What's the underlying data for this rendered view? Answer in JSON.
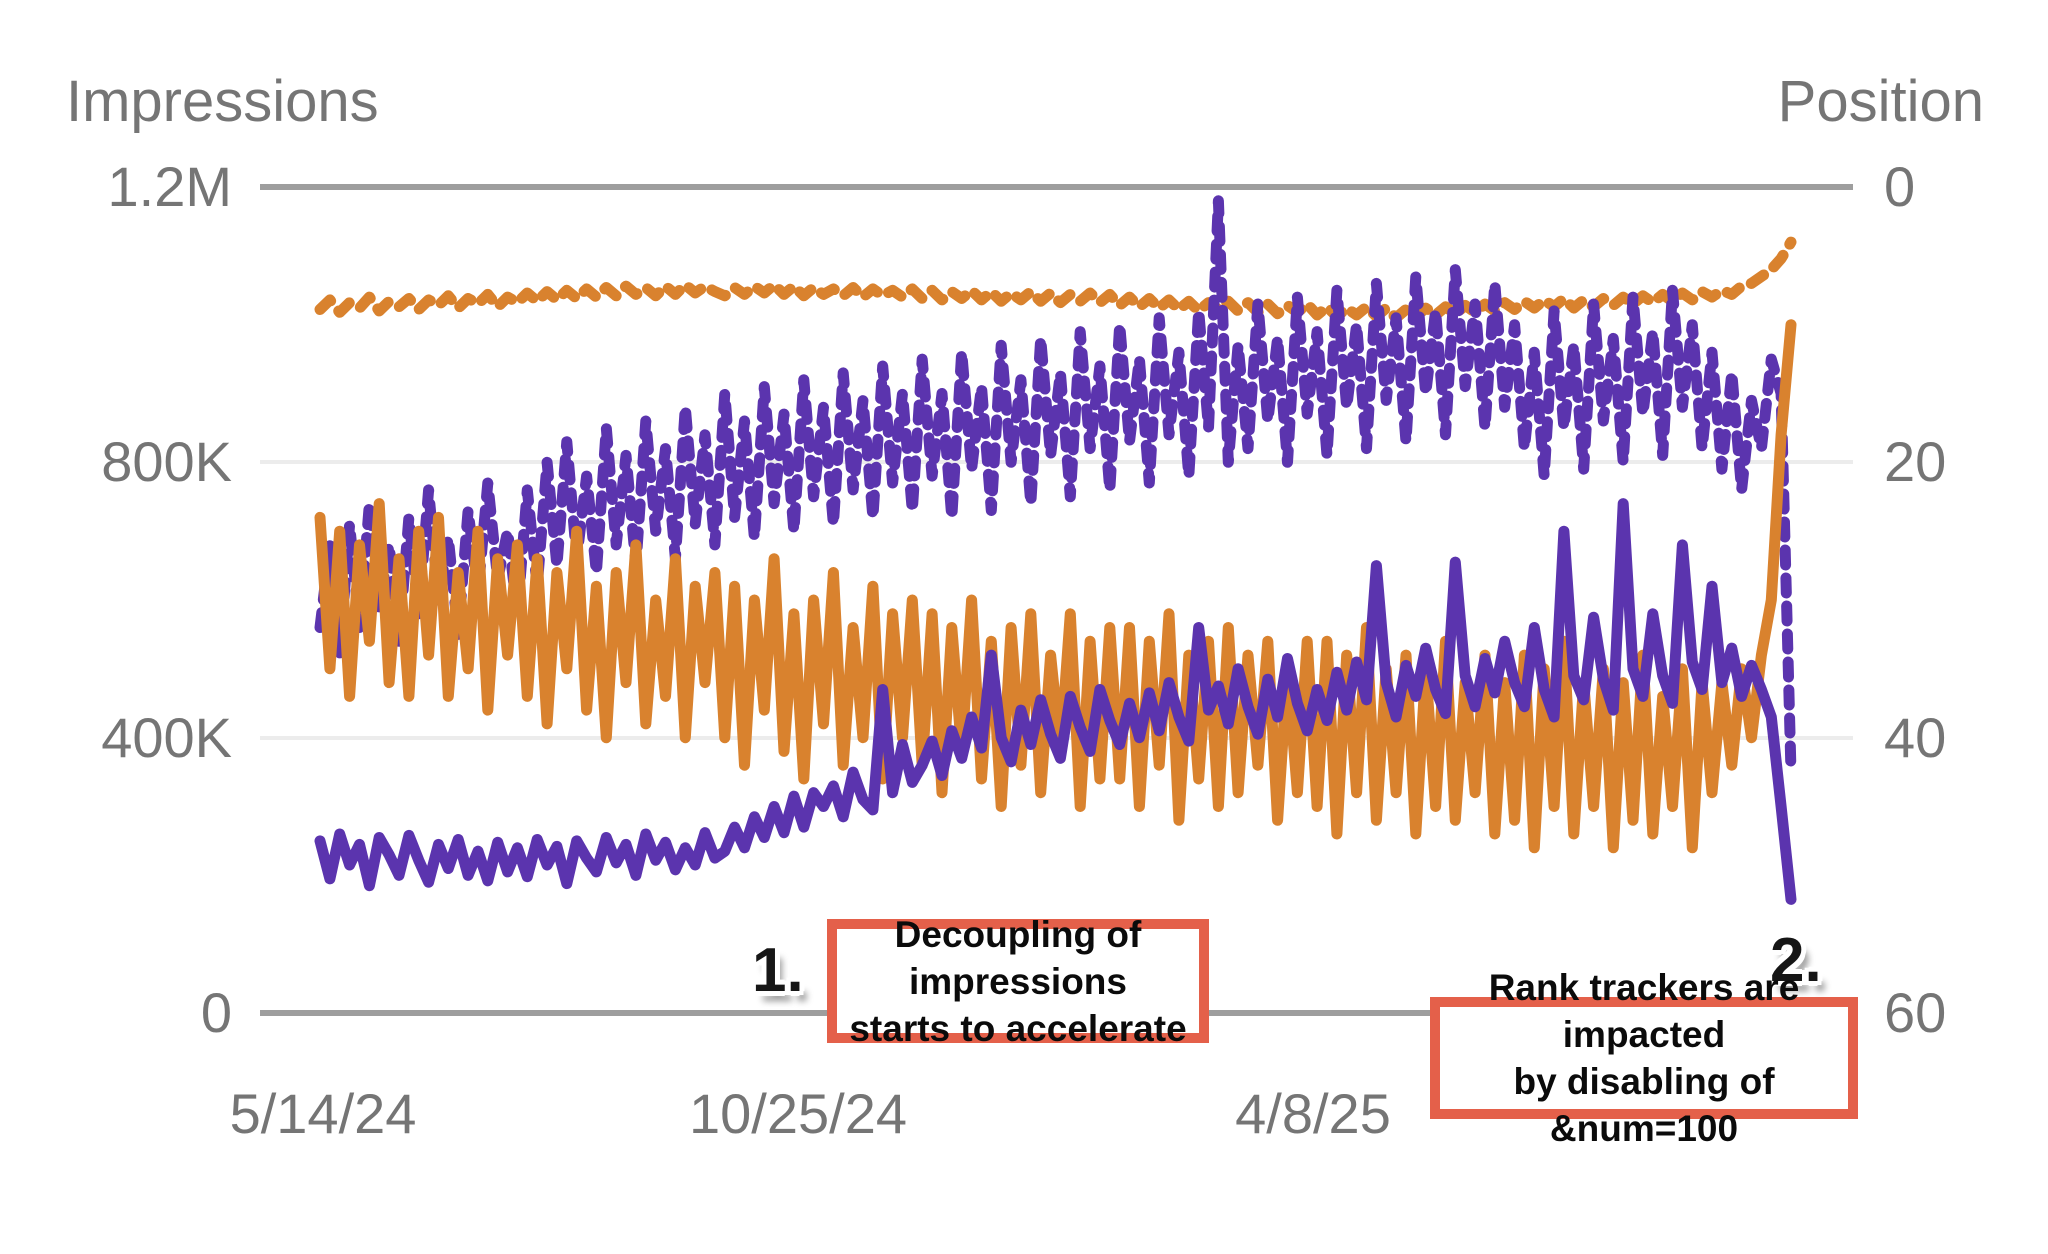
{
  "chart_data": {
    "type": "line",
    "y_left": {
      "title": "Impressions",
      "max_k": 1200,
      "min_k": 0,
      "ticks": [
        "1.2M",
        "800K",
        "400K",
        "0"
      ]
    },
    "y_right": {
      "title": "Position",
      "max": 60,
      "min": 0,
      "inverted": true,
      "ticks": [
        "0",
        "20",
        "40",
        "60"
      ]
    },
    "x_axis": {
      "ticks": [
        "5/14/24",
        "10/25/24",
        "4/8/25"
      ]
    },
    "grid": {
      "major_color": "#9e9e9e",
      "minor_color": "#ececec"
    },
    "colors": {
      "impressions": "#5b34ae",
      "position": "#d9822e",
      "axis_text": "#757575",
      "annotation_border": "#e4604a",
      "annotation_text": "#0b0b0b"
    },
    "series": [
      {
        "name": "position-dashed",
        "axis": "right",
        "style": "dashed",
        "color": "#d9822e",
        "values": [
          8.9,
          8.2,
          9.1,
          8.4,
          8.8,
          8.0,
          9.0,
          8.3,
          8.7,
          8.1,
          8.9,
          8.2,
          8.6,
          7.9,
          8.8,
          8.1,
          8.5,
          7.8,
          8.7,
          8.0,
          8.4,
          7.7,
          8.3,
          7.6,
          8.2,
          7.5,
          8.1,
          7.4,
          8.0,
          7.3,
          7.9,
          7.2,
          7.8,
          7.3,
          7.9,
          7.2,
          7.8,
          7.1,
          7.7,
          7.2,
          7.6,
          7.9,
          7.3,
          7.8,
          7.2,
          7.7,
          7.1,
          7.8,
          7.2,
          7.9,
          7.3,
          7.8,
          7.4,
          7.9,
          7.3,
          8.0,
          7.4,
          7.9,
          7.5,
          8.0,
          7.4,
          8.1,
          7.5,
          8.2,
          7.6,
          8.1,
          7.5,
          8.2,
          7.6,
          8.3,
          7.7,
          8.2,
          7.6,
          8.3,
          7.7,
          8.4,
          7.8,
          8.3,
          7.7,
          8.4,
          7.8,
          8.6,
          8.0,
          8.7,
          8.1,
          8.8,
          8.2,
          8.9,
          8.3,
          9.0,
          8.4,
          8.9,
          8.3,
          9.0,
          8.4,
          9.1,
          8.5,
          9.2,
          8.6,
          9.1,
          8.5,
          9.3,
          8.7,
          9.4,
          8.8,
          9.3,
          8.7,
          9.4,
          8.8,
          9.5,
          8.9,
          9.4,
          8.8,
          9.3,
          8.7,
          9.2,
          8.6,
          9.1,
          8.5,
          9.0,
          8.4,
          8.9,
          8.3,
          8.8,
          8.2,
          8.7,
          8.1,
          8.8,
          8.2,
          8.7,
          8.1,
          8.6,
          8.0,
          8.5,
          7.9,
          8.4,
          7.8,
          8.3,
          7.7,
          8.2,
          7.6,
          8.0,
          7.5,
          7.8,
          7.2,
          7.0,
          6.5,
          6.0,
          5.2,
          4.0
        ]
      },
      {
        "name": "impressions-dashed",
        "axis": "left",
        "style": "dashed",
        "color": "#5b34ae",
        "values_k": [
          560,
          680,
          520,
          710,
          560,
          740,
          590,
          680,
          540,
          720,
          580,
          760,
          600,
          690,
          550,
          730,
          610,
          770,
          630,
          700,
          580,
          760,
          620,
          800,
          650,
          830,
          660,
          780,
          640,
          850,
          680,
          810,
          650,
          860,
          700,
          820,
          660,
          880,
          710,
          840,
          680,
          900,
          720,
          860,
          690,
          910,
          740,
          870,
          700,
          920,
          750,
          880,
          710,
          930,
          760,
          890,
          720,
          940,
          770,
          900,
          730,
          950,
          780,
          900,
          720,
          960,
          790,
          910,
          730,
          970,
          800,
          920,
          740,
          980,
          810,
          930,
          750,
          990,
          820,
          940,
          760,
          1000,
          830,
          950,
          770,
          1010,
          840,
          960,
          780,
          1020,
          850,
          1180,
          800,
          970,
          820,
          1030,
          860,
          980,
          800,
          1040,
          870,
          990,
          810,
          1050,
          880,
          1000,
          820,
          1060,
          890,
          1010,
          830,
          1070,
          900,
          1020,
          840,
          1080,
          910,
          1030,
          850,
          1060,
          880,
          1000,
          820,
          960,
          780,
          1020,
          850,
          970,
          790,
          1030,
          860,
          980,
          800,
          1040,
          870,
          990,
          810,
          1050,
          880,
          1000,
          820,
          960,
          790,
          930,
          760,
          890,
          820,
          950,
          900,
          350
        ]
      },
      {
        "name": "position-solid",
        "axis": "right",
        "style": "solid",
        "color": "#d9822e",
        "values": [
          24,
          35,
          25,
          37,
          26,
          33,
          23,
          36,
          27,
          37,
          25,
          34,
          24,
          37,
          28,
          35,
          25,
          38,
          27,
          34,
          26,
          37,
          27,
          39,
          28,
          35,
          25,
          38,
          29,
          40,
          28,
          36,
          26,
          39,
          30,
          37,
          27,
          40,
          29,
          36,
          28,
          40,
          29,
          42,
          30,
          38,
          27,
          41,
          31,
          43,
          30,
          39,
          28,
          42,
          32,
          40,
          29,
          43,
          31,
          40,
          30,
          42,
          31,
          44,
          32,
          41,
          30,
          43,
          33,
          45,
          32,
          42,
          31,
          44,
          34,
          41,
          31,
          45,
          33,
          43,
          32,
          43,
          32,
          45,
          33,
          42,
          31,
          46,
          34,
          43,
          33,
          45,
          32,
          44,
          34,
          42,
          33,
          46,
          35,
          44,
          33,
          45,
          33,
          47,
          34,
          44,
          32,
          46,
          35,
          44,
          34,
          47,
          35,
          45,
          33,
          46,
          36,
          44,
          34,
          47,
          36,
          46,
          34,
          48,
          35,
          45,
          33,
          47,
          36,
          45,
          35,
          48,
          36,
          46,
          34,
          47,
          37,
          45,
          35,
          48,
          36,
          44,
          36,
          42,
          35,
          40,
          34,
          30,
          18,
          10
        ]
      },
      {
        "name": "impressions-solid",
        "axis": "left",
        "style": "solid",
        "color": "#5b34ae",
        "values_k": [
          250,
          195,
          260,
          215,
          245,
          185,
          255,
          230,
          200,
          258,
          222,
          190,
          245,
          210,
          252,
          200,
          235,
          192,
          248,
          205,
          240,
          198,
          252,
          215,
          242,
          188,
          250,
          225,
          205,
          255,
          218,
          245,
          200,
          260,
          222,
          248,
          208,
          240,
          215,
          262,
          225,
          235,
          270,
          240,
          285,
          255,
          300,
          262,
          315,
          270,
          320,
          300,
          330,
          285,
          350,
          310,
          295,
          470,
          320,
          390,
          335,
          360,
          395,
          345,
          410,
          370,
          430,
          385,
          520,
          400,
          365,
          440,
          390,
          455,
          405,
          370,
          460,
          415,
          380,
          470,
          425,
          390,
          450,
          400,
          465,
          410,
          480,
          430,
          395,
          560,
          440,
          475,
          420,
          500,
          445,
          405,
          485,
          430,
          515,
          450,
          410,
          470,
          425,
          495,
          440,
          510,
          455,
          650,
          480,
          430,
          505,
          460,
          530,
          470,
          435,
          655,
          490,
          445,
          515,
          465,
          540,
          480,
          445,
          560,
          470,
          430,
          700,
          490,
          455,
          575,
          485,
          440,
          740,
          500,
          460,
          580,
          490,
          450,
          680,
          510,
          470,
          620,
          480,
          530,
          460,
          505,
          470,
          430,
          300,
          165
        ]
      }
    ],
    "annotations": [
      {
        "marker": "1.",
        "text_lines": [
          "Decoupling of impressions",
          "starts to accelerate"
        ]
      },
      {
        "marker": "2.",
        "text_lines": [
          "Rank trackers are impacted",
          "by disabling of &num=100"
        ]
      }
    ]
  }
}
